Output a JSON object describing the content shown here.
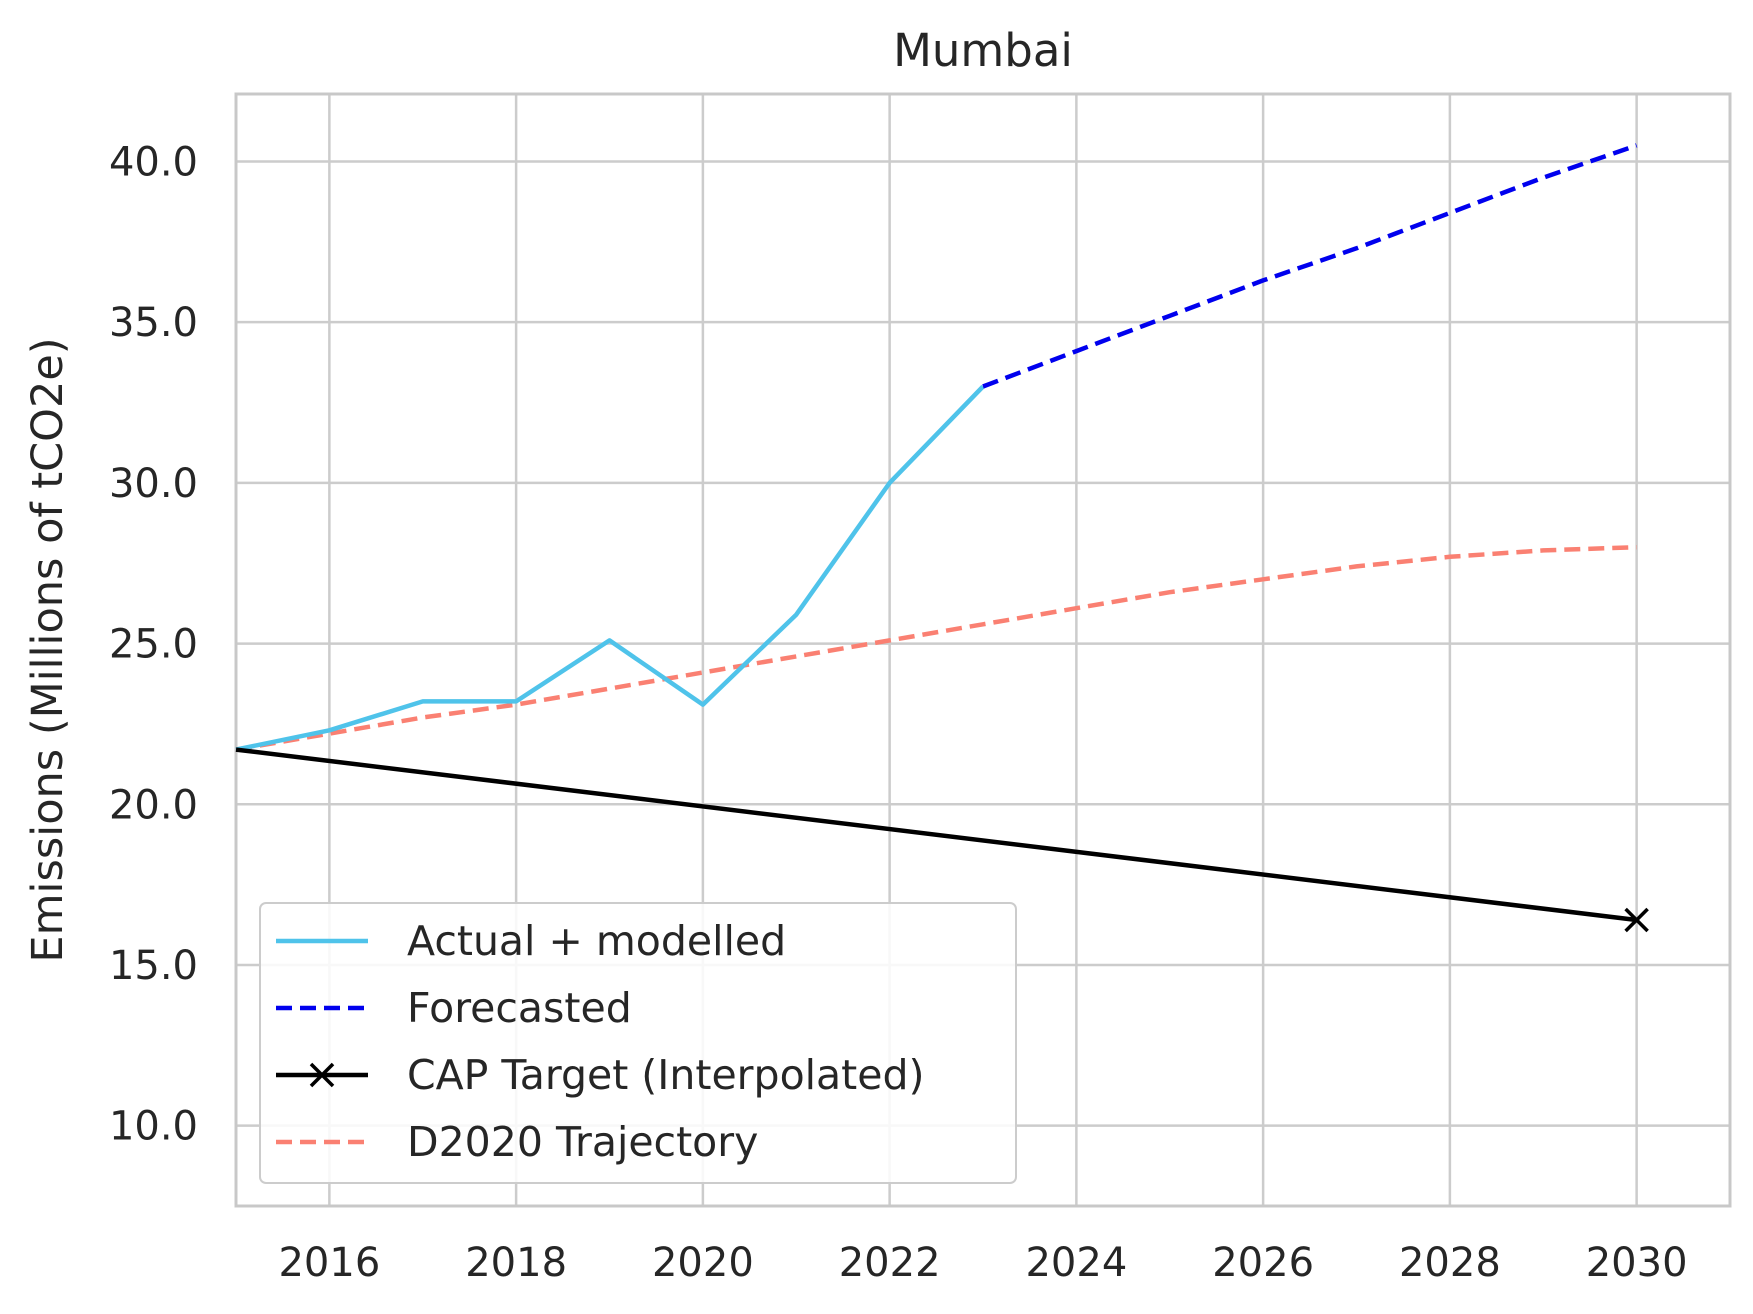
{
  "chart_data": {
    "type": "line",
    "title": "Mumbai",
    "xlabel": "",
    "ylabel": "Emissions (Millions of tCO2e)",
    "xlim": [
      2015,
      2031
    ],
    "ylim": [
      7.5,
      42.1
    ],
    "xticks": [
      2016,
      2018,
      2020,
      2022,
      2024,
      2026,
      2028,
      2030
    ],
    "xtick_labels": [
      "2016",
      "2018",
      "2020",
      "2022",
      "2024",
      "2026",
      "2028",
      "2030"
    ],
    "yticks": [
      10,
      15,
      20,
      25,
      30,
      35,
      40
    ],
    "ytick_labels": [
      "10.0",
      "15.0",
      "20.0",
      "25.0",
      "30.0",
      "35.0",
      "40.0"
    ],
    "grid": true,
    "legend_position": "lower-left",
    "series": [
      {
        "name": "Actual + modelled",
        "color": "#4fc3ea",
        "style": "solid",
        "x": [
          2015,
          2016,
          2017,
          2018,
          2019,
          2020,
          2021,
          2022,
          2023
        ],
        "y": [
          21.7,
          22.3,
          23.2,
          23.2,
          25.1,
          23.1,
          25.9,
          30.0,
          33.0
        ]
      },
      {
        "name": "Forecasted",
        "color": "#0000ee",
        "style": "dashed",
        "x": [
          2023,
          2024,
          2025,
          2026,
          2027,
          2028,
          2029,
          2030
        ],
        "y": [
          33.0,
          34.1,
          35.2,
          36.3,
          37.3,
          38.4,
          39.5,
          40.5
        ]
      },
      {
        "name": "CAP Target (Interpolated)",
        "color": "#000000",
        "style": "solid",
        "marker": "x",
        "marker_at": [
          2030
        ],
        "x": [
          2015,
          2030
        ],
        "y": [
          21.7,
          16.4
        ]
      },
      {
        "name": "D2020 Trajectory",
        "color": "#fa8072",
        "style": "dashed",
        "x": [
          2015,
          2016,
          2017,
          2018,
          2019,
          2020,
          2021,
          2022,
          2023,
          2024,
          2025,
          2026,
          2027,
          2028,
          2029,
          2030
        ],
        "y": [
          21.7,
          22.2,
          22.7,
          23.1,
          23.6,
          24.1,
          24.6,
          25.1,
          25.6,
          26.1,
          26.6,
          27.0,
          27.4,
          27.7,
          27.9,
          28.0
        ]
      }
    ]
  }
}
